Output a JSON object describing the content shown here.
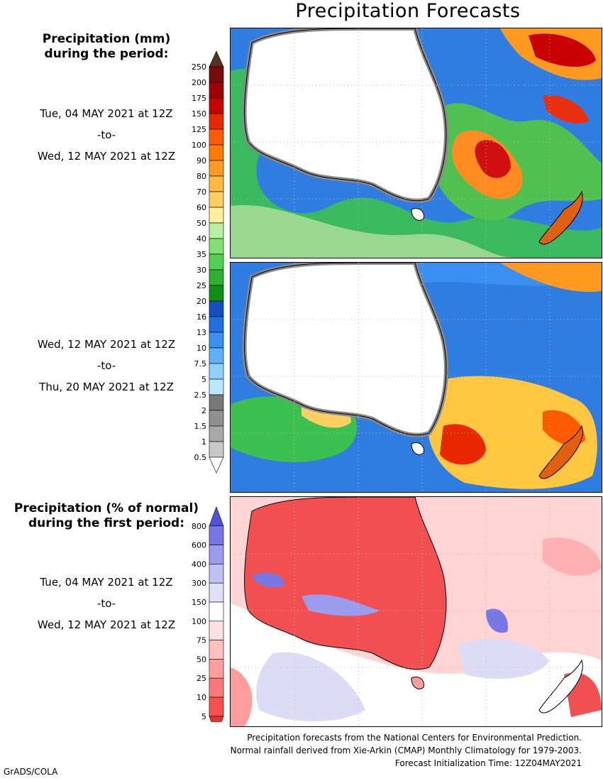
{
  "title": "Precipitation Forecasts",
  "mm_heading": [
    "Precipitation (mm)",
    "during the period:"
  ],
  "pct_heading": [
    "Precipitation (% of normal)",
    "during the first period:"
  ],
  "period1": {
    "from": "Tue, 04 MAY 2021 at 12Z",
    "to": "-to-",
    "until": "Wed, 12 MAY 2021 at 12Z"
  },
  "period2": {
    "from": "Wed, 12 MAY 2021 at 12Z",
    "to": "-to-",
    "until": "Thu, 20 MAY 2021 at 12Z"
  },
  "period_pct": {
    "from": "Tue, 04 MAY 2021 at 12Z",
    "to": "-to-",
    "until": "Wed, 12 MAY 2021 at 12Z"
  },
  "mm_scale": {
    "labels": [
      "250",
      "200",
      "175",
      "150",
      "125",
      "100",
      "90",
      "80",
      "70",
      "60",
      "50",
      "40",
      "35",
      "30",
      "25",
      "20",
      "16",
      "13",
      "10",
      "7.5",
      "5",
      "2.5",
      "2",
      "1.5",
      "1",
      "0.5"
    ],
    "colors": [
      "#5a3020",
      "#7a0a0a",
      "#a00000",
      "#c80000",
      "#e82800",
      "#ff5a00",
      "#ff7a00",
      "#ff9a20",
      "#ffba40",
      "#ffd060",
      "#ffee9a",
      "#b8f0a0",
      "#80e070",
      "#50d050",
      "#30b030",
      "#109010",
      "#1050c0",
      "#2070e0",
      "#3a90f0",
      "#60b0f8",
      "#90d0ff",
      "#b8e8ff",
      "#787878",
      "#909090",
      "#a8a8a8",
      "#c8c8c8",
      "#ffffff"
    ]
  },
  "pct_scale": {
    "labels": [
      "800",
      "600",
      "400",
      "300",
      "150",
      "100",
      "75",
      "50",
      "25",
      "10",
      "5"
    ],
    "colors": [
      "#5050d8",
      "#7878e4",
      "#9c9cee",
      "#c0c0f4",
      "#e0e0fa",
      "#ffffff",
      "#ffe0e0",
      "#ffc0c0",
      "#ff9c9c",
      "#ff7878",
      "#f85050",
      "#e03030"
    ]
  },
  "footer": [
    "Precipitation forecasts from the National Centers for Environmental Prediction.",
    "Normal rainfall derived from Xie-Arkin (CMAP) Monthly Climatology for 1979-2003.",
    "Forecast Initialization Time: 12Z04MAY2021"
  ],
  "credit": "GrADS/COLA"
}
